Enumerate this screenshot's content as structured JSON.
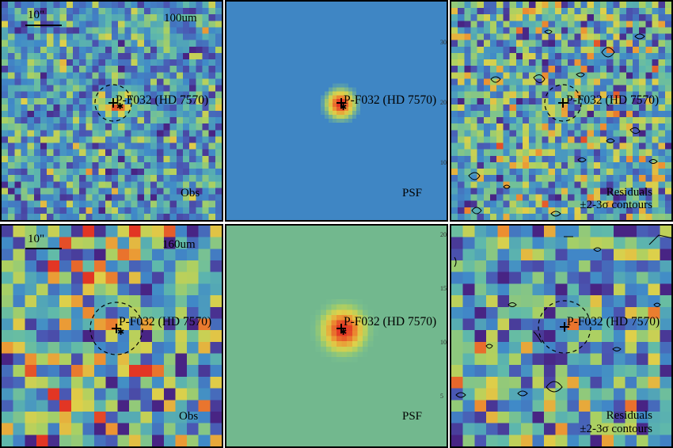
{
  "source_label": "P-F032 (HD 7570)",
  "scale_bar_label": "10\"",
  "rows": [
    {
      "band": "100um",
      "panels": {
        "obs": "Obs",
        "psf": "PSF",
        "residuals": "Residuals",
        "contours": "±2-3σ contours"
      },
      "psf_axis_ticks": [
        "10",
        "20",
        "30"
      ]
    },
    {
      "band": "160um",
      "panels": {
        "obs": "Obs",
        "psf": "PSF",
        "residuals": "Residuals",
        "contours": "±2-3σ contours"
      },
      "psf_axis_ticks": [
        "5",
        "10",
        "15",
        "20"
      ]
    }
  ],
  "colors": {
    "background_blue": "#3f86c4",
    "psf160_green": "#72b88e",
    "peak_red": "#e8452a",
    "outline": "#000000"
  }
}
